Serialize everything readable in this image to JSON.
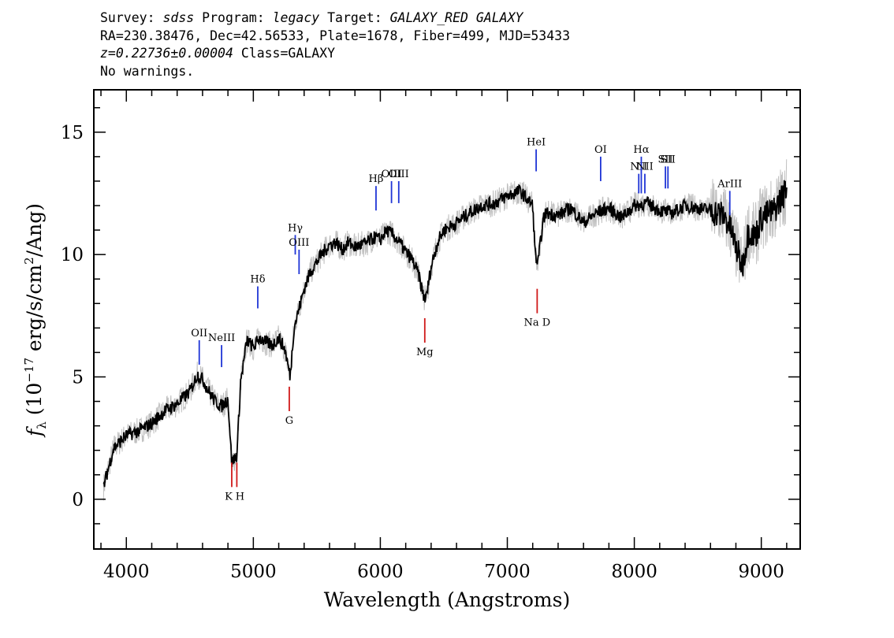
{
  "header": {
    "line1": {
      "survey_label": "Survey: ",
      "survey": "sdss",
      "program_label": " Program: ",
      "program": "legacy",
      "target_label": " Target: ",
      "target": "GALAXY_RED GALAXY"
    },
    "line2": "RA=230.38476, Dec=42.56533, Plate=1678, Fiber=499, MJD=53433",
    "line3": {
      "z": "z=0.22736±0.00004",
      "class": " Class=GALAXY"
    },
    "line4": "No warnings."
  },
  "chart_data": {
    "type": "line",
    "xlabel": "Wavelength (Angstroms)",
    "ylabel": "f_λ (10^-17 erg/s/cm^2/Ang)",
    "xlim": [
      3750,
      9300
    ],
    "ylim": [
      -2,
      16.7
    ],
    "xticks": [
      4000,
      5000,
      6000,
      7000,
      8000,
      9000
    ],
    "yticks": [
      0,
      5,
      10,
      15
    ],
    "series": [
      {
        "role": "flux (raw, grey)",
        "color": "#c0c0c0",
        "x": [
          3820,
          3900,
          4000,
          4100,
          4200,
          4300,
          4400,
          4500,
          4560,
          4600,
          4650,
          4700,
          4750,
          4800,
          4830,
          4870,
          4900,
          4950,
          5000,
          5050,
          5100,
          5150,
          5200,
          5250,
          5290,
          5320,
          5360,
          5400,
          5450,
          5500,
          5550,
          5600,
          5650,
          5700,
          5750,
          5800,
          5850,
          5900,
          5950,
          6000,
          6050,
          6100,
          6150,
          6200,
          6250,
          6300,
          6340,
          6360,
          6400,
          6450,
          6500,
          6600,
          6700,
          6800,
          6900,
          7000,
          7100,
          7200,
          7220,
          7240,
          7280,
          7300,
          7400,
          7500,
          7600,
          7700,
          7800,
          7900,
          8000,
          8100,
          8200,
          8300,
          8400,
          8500,
          8600,
          8700,
          8750,
          8800,
          8850,
          8900,
          8950,
          9000,
          9100,
          9200
        ],
        "values": [
          0.5,
          2.1,
          2.6,
          2.8,
          3.1,
          3.6,
          3.9,
          4.4,
          5.1,
          4.9,
          4.4,
          4.0,
          3.8,
          4.1,
          1.5,
          1.8,
          4.8,
          6.5,
          6.2,
          6.6,
          6.4,
          6.3,
          6.6,
          6.1,
          5.0,
          7.0,
          7.8,
          8.6,
          9.3,
          9.7,
          10.1,
          10.4,
          10.5,
          10.2,
          10.5,
          10.3,
          10.4,
          10.5,
          10.7,
          10.6,
          11.0,
          10.8,
          10.5,
          10.1,
          9.8,
          9.2,
          8.3,
          8.2,
          9.5,
          10.5,
          11.0,
          11.3,
          11.7,
          12.0,
          12.1,
          12.4,
          12.6,
          12.0,
          10.0,
          9.6,
          11.3,
          11.7,
          11.6,
          11.9,
          11.3,
          11.7,
          11.9,
          11.5,
          12.0,
          12.1,
          11.8,
          11.7,
          12.0,
          11.9,
          11.8,
          11.6,
          11.2,
          10.3,
          9.5,
          11.0,
          10.7,
          11.5,
          11.8,
          12.7
        ],
        "band": 0.55
      },
      {
        "role": "smoothed flux (black)",
        "color": "#000000",
        "x": [
          3820,
          3900,
          4000,
          4100,
          4200,
          4300,
          4400,
          4500,
          4560,
          4600,
          4650,
          4700,
          4750,
          4800,
          4830,
          4870,
          4900,
          4950,
          5000,
          5050,
          5100,
          5150,
          5200,
          5250,
          5290,
          5320,
          5360,
          5400,
          5450,
          5500,
          5550,
          5600,
          5650,
          5700,
          5750,
          5800,
          5850,
          5900,
          5950,
          6000,
          6050,
          6100,
          6150,
          6200,
          6250,
          6300,
          6340,
          6360,
          6400,
          6450,
          6500,
          6600,
          6700,
          6800,
          6900,
          7000,
          7100,
          7200,
          7220,
          7240,
          7280,
          7300,
          7400,
          7500,
          7600,
          7700,
          7800,
          7900,
          8000,
          8100,
          8200,
          8300,
          8400,
          8500,
          8600,
          8700,
          8750,
          8800,
          8850,
          8900,
          8950,
          9000,
          9100,
          9200
        ],
        "values": [
          0.5,
          2.1,
          2.6,
          2.8,
          3.1,
          3.6,
          3.9,
          4.4,
          5.1,
          4.9,
          4.4,
          4.0,
          3.8,
          4.1,
          1.5,
          1.8,
          4.8,
          6.5,
          6.2,
          6.6,
          6.4,
          6.3,
          6.6,
          6.1,
          5.0,
          7.0,
          7.8,
          8.6,
          9.3,
          9.7,
          10.1,
          10.4,
          10.5,
          10.2,
          10.5,
          10.3,
          10.4,
          10.5,
          10.7,
          10.6,
          11.0,
          10.8,
          10.5,
          10.1,
          9.8,
          9.2,
          8.3,
          8.2,
          9.5,
          10.5,
          11.0,
          11.3,
          11.7,
          12.0,
          12.1,
          12.4,
          12.6,
          12.0,
          10.0,
          9.6,
          11.3,
          11.7,
          11.6,
          11.9,
          11.3,
          11.7,
          11.9,
          11.5,
          12.0,
          12.1,
          11.8,
          11.7,
          12.0,
          11.9,
          11.8,
          11.6,
          11.2,
          10.3,
          9.5,
          11.0,
          10.7,
          11.5,
          11.8,
          12.7
        ]
      }
    ],
    "emission_lines": [
      {
        "label": "OII",
        "x": 4574,
        "y_bottom": 5.5,
        "y_top": 6.5
      },
      {
        "label": "NeIII",
        "x": 4750,
        "y_bottom": 5.4,
        "y_top": 6.3
      },
      {
        "label": "Hδ",
        "x": 5035,
        "y_bottom": 7.8,
        "y_top": 8.7
      },
      {
        "label": "Hγ",
        "x": 5330,
        "y_bottom": 10.0,
        "y_top": 10.8
      },
      {
        "label": "OIII",
        "x": 5360,
        "y_bottom": 9.2,
        "y_top": 10.2
      },
      {
        "label": "Hβ",
        "x": 5966,
        "y_bottom": 11.8,
        "y_top": 12.8
      },
      {
        "label": "OIII",
        "x": 6088,
        "y_bottom": 12.1,
        "y_top": 13.0
      },
      {
        "label": "OIII",
        "x": 6145,
        "y_bottom": 12.1,
        "y_top": 13.0
      },
      {
        "label": "HeI",
        "x": 7227,
        "y_bottom": 13.4,
        "y_top": 14.3
      },
      {
        "label": "OI",
        "x": 7735,
        "y_bottom": 13.0,
        "y_top": 14.0
      },
      {
        "label": "NII",
        "x": 8035,
        "y_bottom": 12.5,
        "y_top": 13.3
      },
      {
        "label": "Hα",
        "x": 8055,
        "y_bottom": 12.5,
        "y_top": 14.0
      },
      {
        "label": "NII",
        "x": 8083,
        "y_bottom": 12.5,
        "y_top": 13.3
      },
      {
        "label": "SII",
        "x": 8245,
        "y_bottom": 12.7,
        "y_top": 13.6
      },
      {
        "label": "SII",
        "x": 8265,
        "y_bottom": 12.7,
        "y_top": 13.6
      },
      {
        "label": "ArIII",
        "x": 8752,
        "y_bottom": 11.6,
        "y_top": 12.6
      }
    ],
    "absorption_lines": [
      {
        "label": "K",
        "x": 4830,
        "y_bottom": 0.5,
        "y_top": 1.5
      },
      {
        "label": "H",
        "x": 4870,
        "y_bottom": 0.5,
        "y_top": 1.5
      },
      {
        "label": "G",
        "x": 5283,
        "y_bottom": 3.6,
        "y_top": 4.6
      },
      {
        "label": "Mg",
        "x": 6350,
        "y_bottom": 6.4,
        "y_top": 7.4
      },
      {
        "label": "Na D",
        "x": 7235,
        "y_bottom": 7.6,
        "y_top": 8.6
      }
    ],
    "grid": false,
    "legend": "none"
  }
}
